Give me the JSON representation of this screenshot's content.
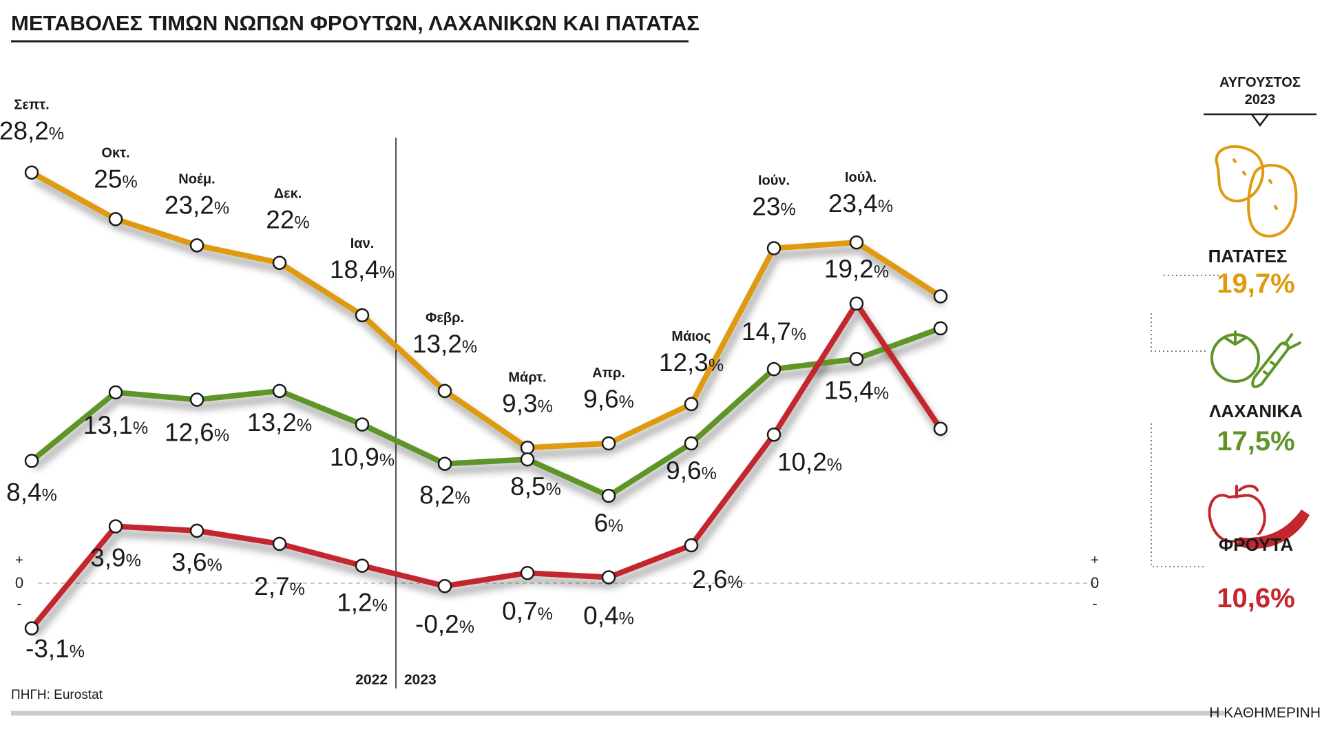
{
  "title": "ΜΕΤΑΒΟΛΕΣ ΤΙΜΩΝ ΝΩΠΩΝ ΦΡΟΥΤΩΝ, ΛΑΧΑΝΙΚΩΝ ΚΑΙ ΠΑΤΑΤΑΣ",
  "source": "ΠΗΓΗ: Eurostat",
  "publisher": "Η ΚΑΘΗΜΕΡΙΝΗ",
  "latest_header": {
    "line1": "ΑΥΓΟΥΣΤΟΣ",
    "line2": "2023"
  },
  "colors": {
    "potatoes": "#E09A0F",
    "vegetables": "#5E9428",
    "fruits": "#C4262D",
    "text": "#1a1a1a"
  },
  "axis_marks": {
    "plus": "+",
    "zero": "0",
    "minus": "-"
  },
  "chart_data": {
    "type": "line",
    "title": "ΜΕΤΑΒΟΛΕΣ ΤΙΜΩΝ ΝΩΠΩΝ ΦΡΟΥΤΩΝ, ΛΑΧΑΝΙΚΩΝ ΚΑΙ ΠΑΤΑΤΑΣ",
    "unit": "%",
    "categories": [
      "Σεπτ.",
      "Οκτ.",
      "Νοέμ.",
      "Δεκ.",
      "Ιαν.",
      "Φεβρ.",
      "Μάρτ.",
      "Απρ.",
      "Μάιος",
      "Ιούν.",
      "Ιούλ.",
      "Αυγ."
    ],
    "year_labels": [
      "2022",
      "2023"
    ],
    "ylim": [
      -5,
      30
    ],
    "series": [
      {
        "key": "potatoes",
        "name": "ΠΑΤΑΤΕΣ",
        "values": [
          28.2,
          25,
          23.2,
          22,
          18.4,
          13.2,
          9.3,
          9.6,
          12.3,
          23,
          23.4,
          19.7
        ],
        "labels": [
          "28,2",
          "25",
          "23,2",
          "22",
          "18,4",
          "13,2",
          "9,3",
          "9,6",
          "12,3",
          "23",
          "23,4",
          "19,7%"
        ]
      },
      {
        "key": "vegetables",
        "name": "ΛΑΧΑΝΙΚΑ",
        "values": [
          8.4,
          13.1,
          12.6,
          13.2,
          10.9,
          8.2,
          8.5,
          6,
          9.6,
          14.7,
          15.4,
          17.5
        ],
        "labels": [
          "8,4",
          "13,1",
          "12,6",
          "13,2",
          "10,9",
          "8,2",
          "8,5",
          "6",
          "9,6",
          "14,7",
          "15,4",
          "17,5%"
        ]
      },
      {
        "key": "fruits",
        "name": "ΦΡΟΥΤΑ",
        "values": [
          -3.1,
          3.9,
          3.6,
          2.7,
          1.2,
          -0.2,
          0.7,
          0.4,
          2.6,
          10.2,
          19.2,
          10.6
        ],
        "labels": [
          "-3,1",
          "3,9",
          "3,6",
          "2,7",
          "1,2",
          "-0,2",
          "0,7",
          "0,4",
          "2,6",
          "10,2",
          "19,2",
          "10,6%"
        ]
      }
    ]
  }
}
